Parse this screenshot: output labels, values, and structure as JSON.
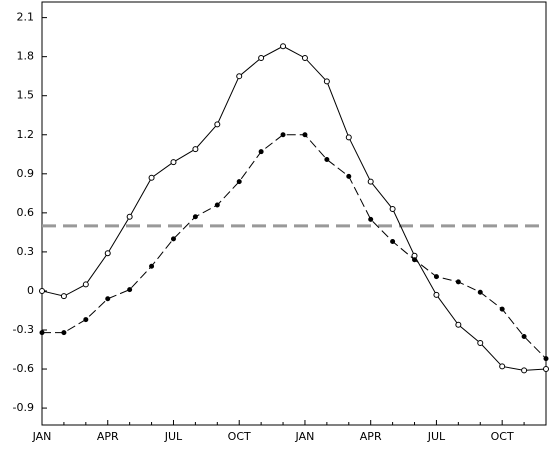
{
  "chart_data": {
    "type": "line",
    "categories": [
      "JAN",
      null,
      null,
      "APR",
      null,
      null,
      "JUL",
      null,
      null,
      "OCT",
      null,
      null,
      "JAN",
      null,
      null,
      "APR",
      null,
      null,
      "JUL",
      null,
      null,
      "OCT",
      null,
      null
    ],
    "series": [
      {
        "color": "#000000",
        "marker": "open",
        "dash": false,
        "values": [
          0,
          -0.04,
          0.05,
          0.29,
          0.57,
          0.87,
          0.99,
          1.09,
          1.28,
          1.65,
          1.79,
          1.88,
          1.79,
          1.61,
          1.18,
          0.84,
          0.63,
          0.27,
          -0.03,
          -0.26,
          -0.4,
          -0.58,
          -0.61,
          -0.6
        ]
      },
      {
        "color": "#000000",
        "marker": "filled",
        "dash": true,
        "values": [
          -0.32,
          -0.32,
          -0.22,
          -0.06,
          0.01,
          0.19,
          0.4,
          0.57,
          0.66,
          0.84,
          1.07,
          1.2,
          1.2,
          1.01,
          0.88,
          0.55,
          0.38,
          0.24,
          0.11,
          0.07,
          -0.01,
          -0.14,
          -0.35,
          -0.52
        ]
      }
    ],
    "reference_line": {
      "value": 0.5,
      "color": "#999999"
    },
    "ylim": [
      -1.03,
      2.22
    ],
    "yticks": [
      -0.9,
      -0.6,
      -0.3,
      0,
      0.3,
      0.6,
      0.9,
      1.2,
      1.5,
      1.8,
      2.1
    ]
  }
}
